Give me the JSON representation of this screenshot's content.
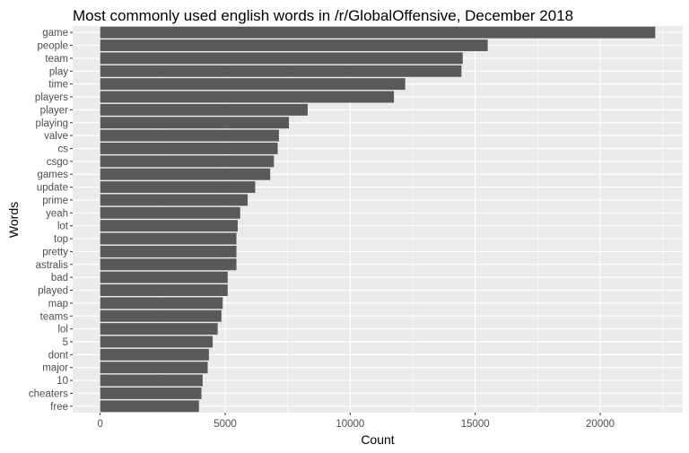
{
  "chart_data": {
    "type": "bar",
    "orientation": "horizontal",
    "title": "Most commonly used english words in /r/GlobalOffensive, December 2018",
    "xlabel": "Count",
    "ylabel": "Words",
    "xlim": [
      -1100,
      23300
    ],
    "xticks": [
      0,
      5000,
      10000,
      15000,
      20000
    ],
    "grid": true,
    "legend": "none",
    "colors": {
      "panel": "#ebebeb",
      "bar": "#595959",
      "grid": "#ffffff",
      "tick_text": "#4d4d4d",
      "tick_mark": "#333333"
    },
    "categories": [
      "game",
      "people",
      "team",
      "play",
      "time",
      "players",
      "player",
      "playing",
      "valve",
      "cs",
      "csgo",
      "games",
      "update",
      "prime",
      "yeah",
      "lot",
      "top",
      "pretty",
      "astralis",
      "bad",
      "played",
      "map",
      "teams",
      "lol",
      "5",
      "dont",
      "major",
      "10",
      "cheaters",
      "free"
    ],
    "values": [
      22200,
      15500,
      14500,
      14450,
      12200,
      11750,
      8300,
      7550,
      7150,
      7100,
      6950,
      6800,
      6200,
      5900,
      5600,
      5500,
      5450,
      5450,
      5450,
      5100,
      5100,
      4900,
      4850,
      4700,
      4500,
      4350,
      4300,
      4100,
      4050,
      3950
    ]
  }
}
